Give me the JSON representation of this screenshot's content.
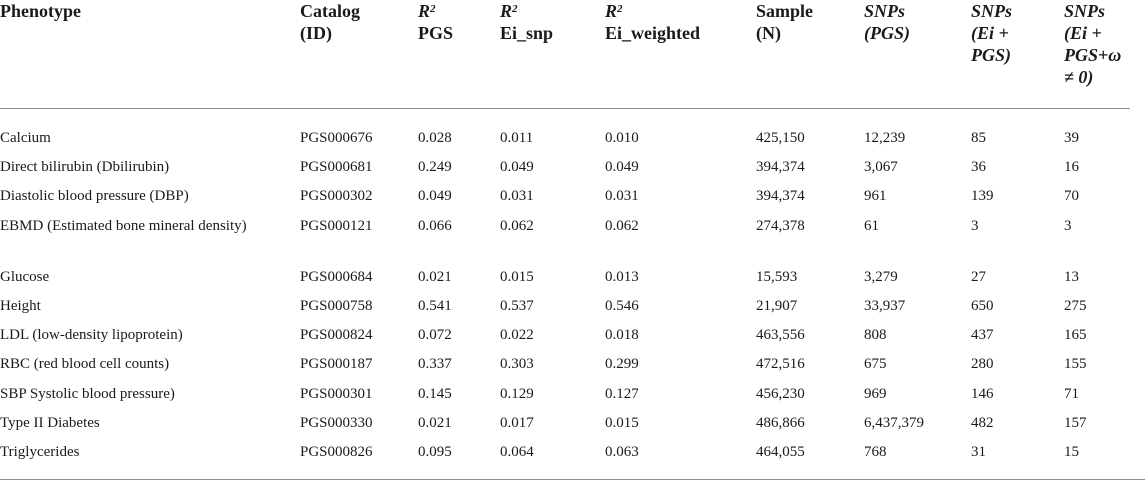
{
  "table": {
    "headers": [
      {
        "line1": "Phenotype",
        "line2": "",
        "line3": "",
        "line4": ""
      },
      {
        "line1": "Catalog",
        "line2": "(ID)",
        "line3": "",
        "line4": ""
      },
      {
        "r2": "R",
        "sup": "2",
        "line2": "PGS"
      },
      {
        "r2": "R",
        "sup": "2",
        "line2": "Ei_snp"
      },
      {
        "r2": "R",
        "sup": "2",
        "line2": "Ei_weighted"
      },
      {
        "line1": "Sample",
        "line2": "(N)",
        "line3": "",
        "line4": ""
      },
      {
        "line1": "SNPs",
        "line2": "(PGS)",
        "line3": "",
        "line4": ""
      },
      {
        "line1": "SNPs",
        "line2": "(Ei +",
        "line3": "PGS)",
        "line4": ""
      },
      {
        "line1": "SNPs",
        "line2": "(Ei +",
        "line3": "PGS+ω",
        "line4": "≠ 0)"
      }
    ],
    "rows": [
      [
        "Calcium",
        "PGS000676",
        "0.028",
        "0.011",
        "0.010",
        "425,150",
        "12,239",
        "85",
        "39"
      ],
      [
        "Direct bilirubin (Dbilirubin)",
        "PGS000681",
        "0.249",
        "0.049",
        "0.049",
        "394,374",
        "3,067",
        "36",
        "16"
      ],
      [
        "Diastolic blood pressure (DBP)",
        "PGS000302",
        "0.049",
        "0.031",
        "0.031",
        "394,374",
        "961",
        "139",
        "70"
      ],
      [
        "EBMD (Estimated bone mineral density)",
        "PGS000121",
        "0.066",
        "0.062",
        "0.062",
        "274,378",
        "61",
        "3",
        "3"
      ],
      [
        "Glucose",
        "PGS000684",
        "0.021",
        "0.015",
        "0.013",
        "15,593",
        "3,279",
        "27",
        "13"
      ],
      [
        "Height",
        "PGS000758",
        "0.541",
        "0.537",
        "0.546",
        "21,907",
        "33,937",
        "650",
        "275"
      ],
      [
        "LDL (low-density lipoprotein)",
        "PGS000824",
        "0.072",
        "0.022",
        "0.018",
        "463,556",
        "808",
        "437",
        "165"
      ],
      [
        "RBC (red blood cell counts)",
        "PGS000187",
        "0.337",
        "0.303",
        "0.299",
        "472,516",
        "675",
        "280",
        "155"
      ],
      [
        "SBP Systolic blood pressure)",
        "PGS000301",
        "0.145",
        "0.129",
        "0.127",
        "456,230",
        "969",
        "146",
        "71"
      ],
      [
        "Type II Diabetes",
        "PGS000330",
        "0.021",
        "0.017",
        "0.015",
        "486,866",
        "6,437,379",
        "482",
        "157"
      ],
      [
        "Triglycerides",
        "PGS000826",
        "0.095",
        "0.064",
        "0.063",
        "464,055",
        "768",
        "31",
        "15"
      ]
    ]
  }
}
